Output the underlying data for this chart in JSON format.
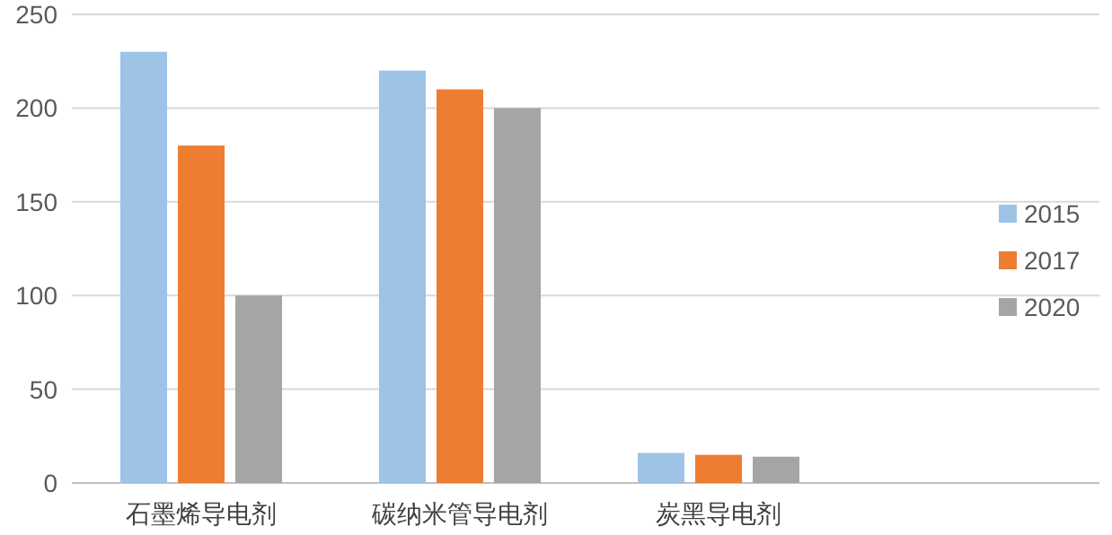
{
  "chart_data": {
    "type": "bar",
    "categories": [
      "石墨烯导电剂",
      "碳纳米管导电剂",
      "炭黑导电剂"
    ],
    "series": [
      {
        "name": "2015",
        "color": "#9dc3e6",
        "values": [
          230,
          220,
          16
        ]
      },
      {
        "name": "2017",
        "color": "#ed7d31",
        "values": [
          180,
          210,
          15
        ]
      },
      {
        "name": "2020",
        "color": "#a5a5a5",
        "values": [
          100,
          200,
          14
        ]
      }
    ],
    "ylim": [
      0,
      250
    ],
    "yticks": [
      0,
      50,
      100,
      150,
      200,
      250
    ],
    "grid": "y",
    "legend": "right"
  }
}
